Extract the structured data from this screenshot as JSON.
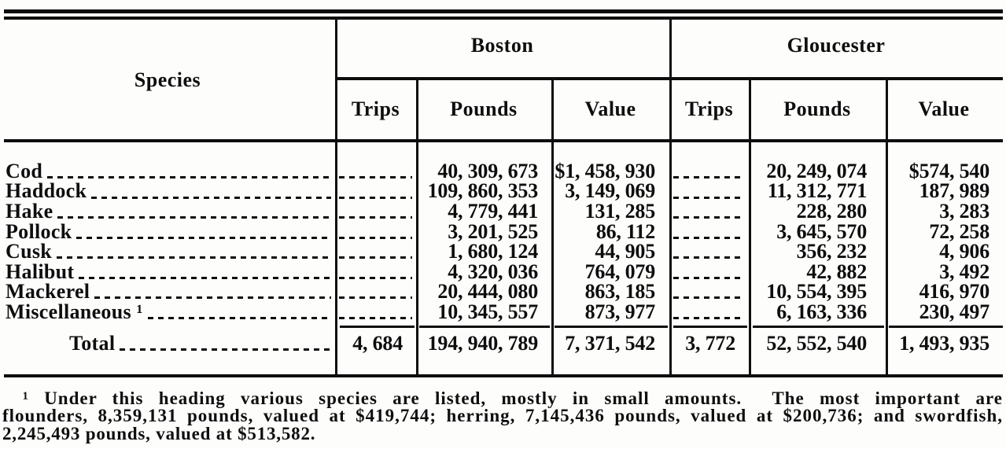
{
  "document_type": "scanned statistical table",
  "table": {
    "header": {
      "species_label": "Species",
      "port_groups": [
        {
          "label": "Boston",
          "columns": [
            "Trips",
            "Pounds",
            "Value"
          ]
        },
        {
          "label": "Gloucester",
          "columns": [
            "Trips",
            "Pounds",
            "Value"
          ]
        }
      ]
    },
    "rows": [
      {
        "species": "Cod",
        "boston_pounds": "40, 309, 673",
        "boston_value": "$1, 458, 930",
        "gloucester_pounds": "20, 249, 074",
        "gloucester_value": "$574, 540"
      },
      {
        "species": "Haddock",
        "boston_pounds": "109, 860, 353",
        "boston_value": "3, 149, 069",
        "gloucester_pounds": "11, 312, 771",
        "gloucester_value": "187, 989"
      },
      {
        "species": "Hake",
        "boston_pounds": "4, 779, 441",
        "boston_value": "131, 285",
        "gloucester_pounds": "228, 280",
        "gloucester_value": "3, 283"
      },
      {
        "species": "Pollock",
        "boston_pounds": "3, 201, 525",
        "boston_value": "86, 112",
        "gloucester_pounds": "3, 645, 570",
        "gloucester_value": "72, 258"
      },
      {
        "species": "Cusk",
        "boston_pounds": "1, 680, 124",
        "boston_value": "44, 905",
        "gloucester_pounds": "356, 232",
        "gloucester_value": "4, 906"
      },
      {
        "species": "Halibut",
        "boston_pounds": "4, 320, 036",
        "boston_value": "764, 079",
        "gloucester_pounds": "42, 882",
        "gloucester_value": "3, 492"
      },
      {
        "species": "Mackerel",
        "boston_pounds": "20, 444, 080",
        "boston_value": "863, 185",
        "gloucester_pounds": "10, 554, 395",
        "gloucester_value": "416, 970"
      },
      {
        "species": "Miscellaneous ¹",
        "boston_pounds": "10, 345, 557",
        "boston_value": "873, 977",
        "gloucester_pounds": "6, 163, 336",
        "gloucester_value": "230, 497"
      }
    ],
    "total": {
      "label": "Total",
      "boston_trips": "4, 684",
      "boston_pounds": "194, 940, 789",
      "boston_value": "7, 371, 542",
      "gloucester_trips": "3, 772",
      "gloucester_pounds": "52, 552, 540",
      "gloucester_value": "1, 493, 935"
    }
  },
  "footnote": {
    "lines": [
      "¹ Under this heading various species are listed, mostly in small amounts.  The most important are",
      "flounders, 8,359,131 pounds, valued at $419,744; herring, 7,145,436 pounds, valued at $200,736; and swordfish,",
      "2,245,493 pounds, valued at $513,582."
    ]
  },
  "colors": {
    "paper": "#fdfdfc",
    "ink": "#0e0e0e"
  }
}
